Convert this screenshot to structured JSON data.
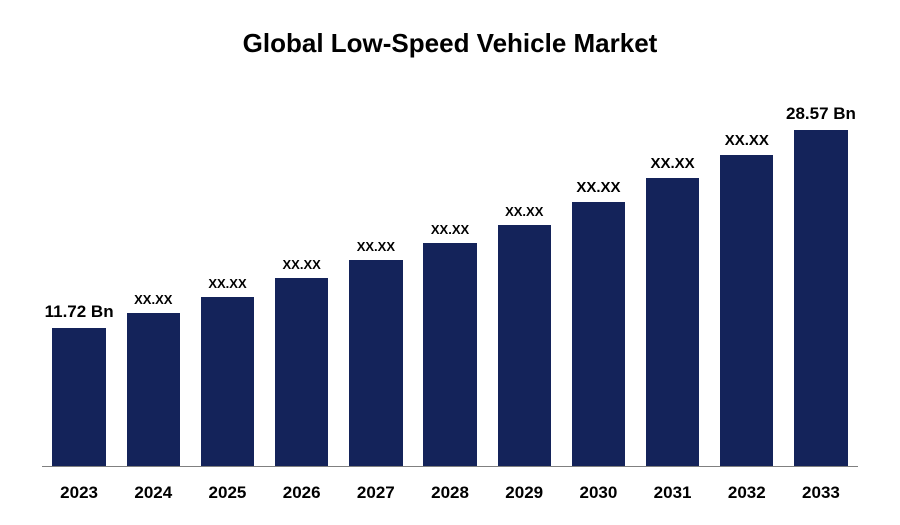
{
  "chart": {
    "type": "bar",
    "title": "Global Low-Speed Vehicle Market",
    "title_fontsize": 26,
    "title_color": "#000000",
    "background_color": "#ffffff",
    "axis_color": "#808080",
    "bar_color": "#14235a",
    "label_color": "#000000",
    "xlabel_fontsize": 17,
    "barlabel_fontsize_first_last": 17,
    "barlabel_fontsize_mid_large": 15,
    "barlabel_fontsize_mid_small": 13,
    "ymax": 32,
    "categories": [
      "2023",
      "2024",
      "2025",
      "2026",
      "2027",
      "2028",
      "2029",
      "2030",
      "2031",
      "2032",
      "2033"
    ],
    "values": [
      11.72,
      13.0,
      14.4,
      16.0,
      17.5,
      19.0,
      20.5,
      22.5,
      24.5,
      26.5,
      28.57
    ],
    "bar_labels": [
      "11.72 Bn",
      "XX.XX",
      "XX.XX",
      "XX.XX",
      "XX.XX",
      "XX.XX",
      "XX.XX",
      "XX.XX",
      "XX.XX",
      "XX.XX",
      "28.57 Bn"
    ],
    "bar_label_sizes": [
      17,
      13,
      13,
      13,
      13,
      13,
      13,
      15,
      15,
      15,
      17
    ]
  }
}
